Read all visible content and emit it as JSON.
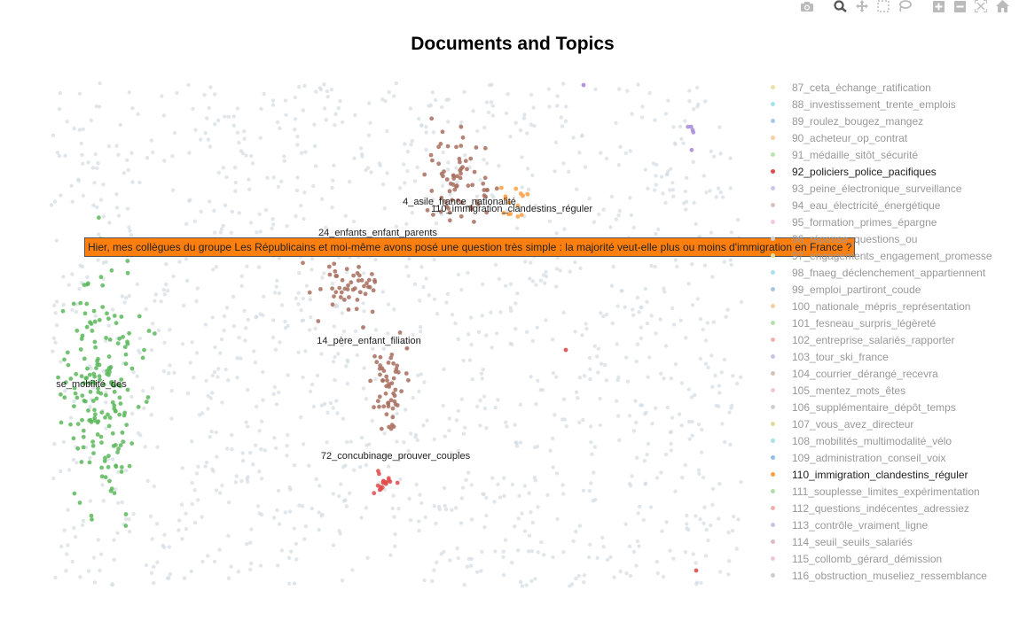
{
  "title": "Documents and Topics",
  "modebar": [
    "camera-icon",
    "zoom-icon",
    "pan-icon",
    "box-select-icon",
    "lasso-icon",
    "zoom-in-icon",
    "zoom-out-icon",
    "autoscale-icon",
    "home-icon"
  ],
  "tooltip": "Hier, mes collègues du groupe Les Républicains et moi-même avons posé une question très simple : la majorité veut-elle plus ou moins d'immigration en France ?",
  "legend": [
    {
      "label": "87_ceta_échange_ratification",
      "color": "#e6e3a6",
      "active": false
    },
    {
      "label": "88_investissement_trente_emplois",
      "color": "#a8e3ea",
      "active": false
    },
    {
      "label": "89_roulez_bougez_mangez",
      "color": "#a9c9e8",
      "active": false
    },
    {
      "label": "90_acheteur_op_contrat",
      "color": "#f7cfa3",
      "active": false
    },
    {
      "label": "91_médaille_sitôt_sécurité",
      "color": "#b8e3ad",
      "active": false
    },
    {
      "label": "92_policiers_police_pacifiques",
      "color": "#e04b4b",
      "active": true
    },
    {
      "label": "93_peine_électronique_surveillance",
      "color": "#cfc5e5",
      "active": false
    },
    {
      "label": "94_eau_électricité_énergétique",
      "color": "#d6c3bd",
      "active": false
    },
    {
      "label": "95_formation_primes_épargne",
      "color": "#f3c9e0",
      "active": false
    },
    {
      "label": "96_réponse_questions_ou",
      "color": "#d0d0d0",
      "active": false
    },
    {
      "label": "97_engagements_engagement_promesse",
      "color": "#dede9f",
      "active": false
    },
    {
      "label": "98_fnaeg_déclenchement_appartiennent",
      "color": "#a9e2ea",
      "active": false
    },
    {
      "label": "99_emploi_partiront_coude",
      "color": "#a8c6e4",
      "active": false
    },
    {
      "label": "100_nationale_mépris_représentation",
      "color": "#f6cea2",
      "active": false
    },
    {
      "label": "101_fesneau_surpris_légèreté",
      "color": "#b6e1ab",
      "active": false
    },
    {
      "label": "102_entreprise_salariés_rapporter",
      "color": "#f0b3b3",
      "active": false
    },
    {
      "label": "103_tour_ski_france",
      "color": "#cbc3e3",
      "active": false
    },
    {
      "label": "104_courrier_dérangé_recevra",
      "color": "#d4c2bc",
      "active": false
    },
    {
      "label": "105_mentez_mots_êtes",
      "color": "#f2c8dd",
      "active": false
    },
    {
      "label": "106_supplémentaire_dépôt_temps",
      "color": "#cfcfcf",
      "active": false
    },
    {
      "label": "107_vous_avez_directeur",
      "color": "#dcdc9e",
      "active": false
    },
    {
      "label": "108_mobilités_multimodalité_vélo",
      "color": "#a8e1ea",
      "active": false
    },
    {
      "label": "109_administration_conseil_voix",
      "color": "#8fbde6",
      "active": false
    },
    {
      "label": "110_immigration_clandestins_réguler",
      "color": "#ff9f3f",
      "active": true
    },
    {
      "label": "111_souplesse_limites_expérimentation",
      "color": "#b4dea9",
      "active": false
    },
    {
      "label": "112_questions_indécentes_adressiez",
      "color": "#efb0b0",
      "active": false
    },
    {
      "label": "113_contrôle_vraiment_ligne",
      "color": "#cac2e1",
      "active": false
    },
    {
      "label": "114_seuil_seuils_salariés",
      "color": "#d8bcc1",
      "active": false
    },
    {
      "label": "115_collomb_gérard_démission",
      "color": "#f1c6dc",
      "active": false
    },
    {
      "label": "116_obstruction_museliez_ressemblance",
      "color": "#cdcdcd",
      "active": false
    }
  ],
  "chart_data": {
    "type": "scatter",
    "title": "Documents and Topics",
    "grid": false,
    "background_points_color": "#d6dde3",
    "clusters": [
      {
        "name": "4_asile_france_nationalité",
        "color": "#a86f5e",
        "label": "4_asile_france_nationalité"
      },
      {
        "name": "24_enfants_enfant_parents",
        "color": "#a86f5e",
        "label": "24_enfants_enfant_parents"
      },
      {
        "name": "14_père_enfant_filiation",
        "color": "#a86f5e",
        "label": "14_père_enfant_filiation"
      },
      {
        "name": "110_immigration_clandestins_réguler",
        "color": "#ff9f3f",
        "label": "110_immigration_clandestins_réguler"
      },
      {
        "name": "72_concubinage_prouver_couples",
        "color": "#e04b4b",
        "label": "72_concubinage_prouver_couples"
      },
      {
        "name": "se_mobilité_des",
        "color": "#5cb85c",
        "label": "se_mobilité_des"
      },
      {
        "name": "93_peine_électronique_surveillance",
        "color": "#a78bd6",
        "label": ""
      }
    ]
  }
}
